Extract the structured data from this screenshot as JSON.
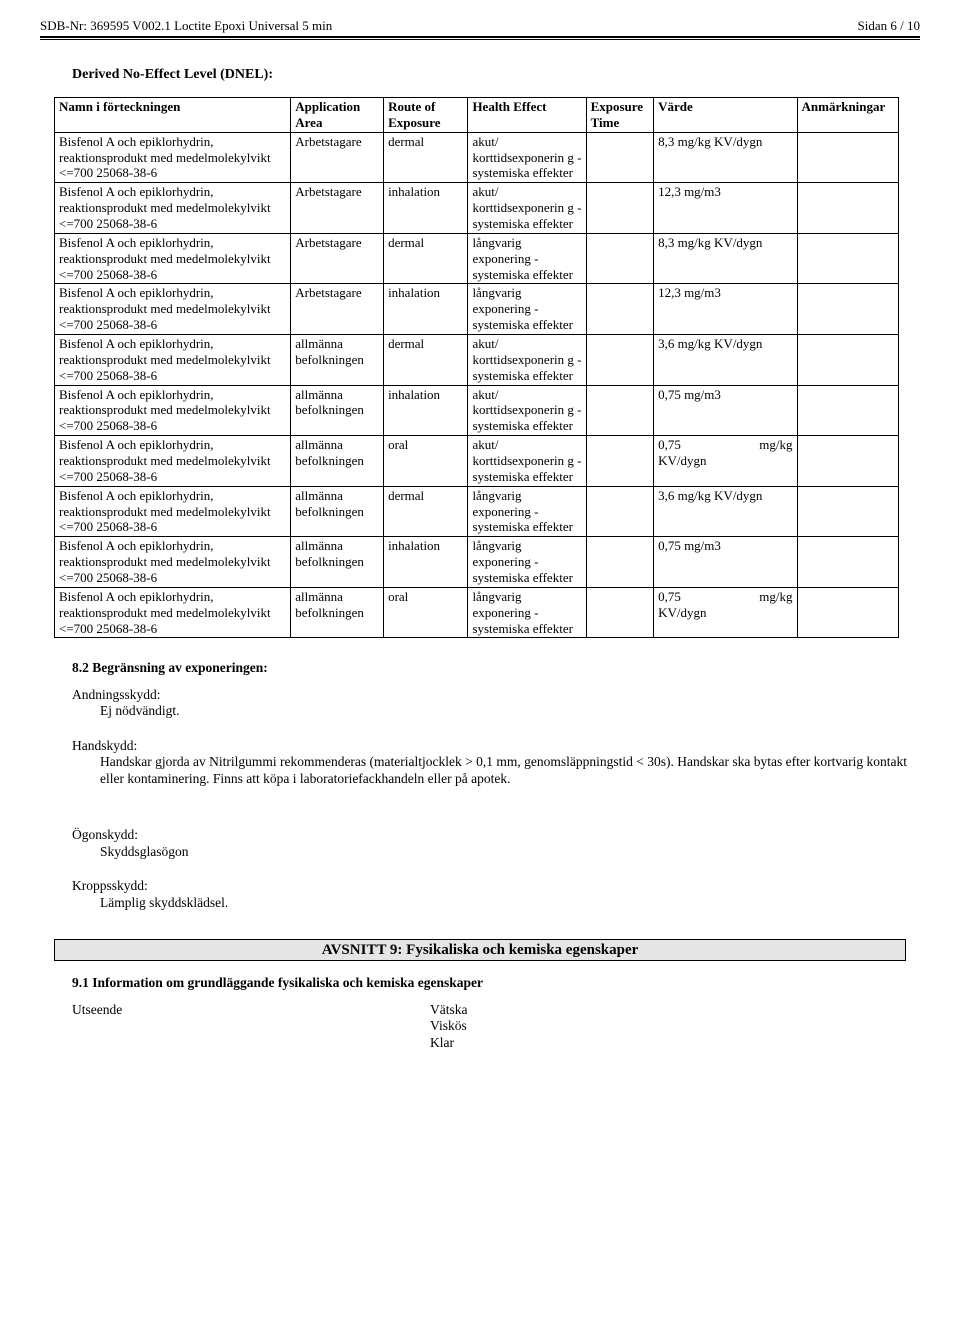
{
  "header": {
    "left": "SDB-Nr: 369595 V002.1   Loctite Epoxi Universal 5 min",
    "right": "Sidan 6 / 10"
  },
  "dnel": {
    "title": "Derived No-Effect Level (DNEL):",
    "columns": [
      "Namn i förteckningen",
      "Application Area",
      "Route of Exposure",
      "Health Effect",
      "Exposure Time",
      "Värde",
      "Anmärkningar"
    ],
    "substance": "Bisfenol A och epiklorhydrin, reaktionsprodukt med medelmolekylvikt <=700\n25068-38-6",
    "rows": [
      {
        "area": "Arbetstagare",
        "route": "dermal",
        "effect": "akut/ korttidsexponerin g - systemiska effekter",
        "time": "",
        "value": "8,3 mg/kg KV/dygn",
        "rem": ""
      },
      {
        "area": "Arbetstagare",
        "route": "inhalation",
        "effect": "akut/ korttidsexponerin g - systemiska effekter",
        "time": "",
        "value": "12,3 mg/m3",
        "rem": ""
      },
      {
        "area": "Arbetstagare",
        "route": "dermal",
        "effect": "långvarig exponering - systemiska effekter",
        "time": "",
        "value": "8,3 mg/kg KV/dygn",
        "rem": ""
      },
      {
        "area": "Arbetstagare",
        "route": "inhalation",
        "effect": "långvarig exponering - systemiska effekter",
        "time": "",
        "value": "12,3 mg/m3",
        "rem": ""
      },
      {
        "area": "allmänna befolkningen",
        "route": "dermal",
        "effect": "akut/ korttidsexponerin g - systemiska effekter",
        "time": "",
        "value": "3,6 mg/kg KV/dygn",
        "rem": ""
      },
      {
        "area": "allmänna befolkningen",
        "route": "inhalation",
        "effect": "akut/ korttidsexponerin g - systemiska effekter",
        "time": "",
        "value": "0,75 mg/m3",
        "rem": ""
      },
      {
        "area": "allmänna befolkningen",
        "route": "oral",
        "effect": "akut/ korttidsexponerin g - systemiska effekter",
        "time": "",
        "value": "0,75 mg/kg KV/dygn",
        "rem": ""
      },
      {
        "area": "allmänna befolkningen",
        "route": "dermal",
        "effect": "långvarig exponering - systemiska effekter",
        "time": "",
        "value": "3,6 mg/kg KV/dygn",
        "rem": ""
      },
      {
        "area": "allmänna befolkningen",
        "route": "inhalation",
        "effect": "långvarig exponering - systemiska effekter",
        "time": "",
        "value": "0,75 mg/m3",
        "rem": ""
      },
      {
        "area": "allmänna befolkningen",
        "route": "oral",
        "effect": "långvarig exponering - systemiska effekter",
        "time": "",
        "value": "0,75 mg/kg KV/dygn",
        "rem": ""
      }
    ]
  },
  "s82": {
    "heading": "8.2 Begränsning av exponeringen:",
    "respiratory_label": "Andningsskydd:",
    "respiratory_body": "Ej nödvändigt.",
    "hand_label": "Handskydd:",
    "hand_body": "Handskar gjorda av Nitrilgummi rekommenderas (materialtjocklek > 0,1 mm, genomsläppningstid < 30s). Handskar ska bytas efter kortvarig kontakt eller kontaminering. Finns att köpa i laboratoriefackhandeln eller på apotek.",
    "eye_label": "Ögonskydd:",
    "eye_body": "Skyddsglasögon",
    "body_label": "Kroppsskydd:",
    "body_body": "Lämplig skyddsklädsel."
  },
  "s9": {
    "bar": "AVSNITT 9: Fysikaliska och kemiska egenskaper",
    "s91": "9.1 Information om grundläggande fysikaliska och kemiska egenskaper",
    "appearance_label": "Utseende",
    "appearance_vals": [
      "Vätska",
      "Viskös",
      "Klar"
    ]
  }
}
